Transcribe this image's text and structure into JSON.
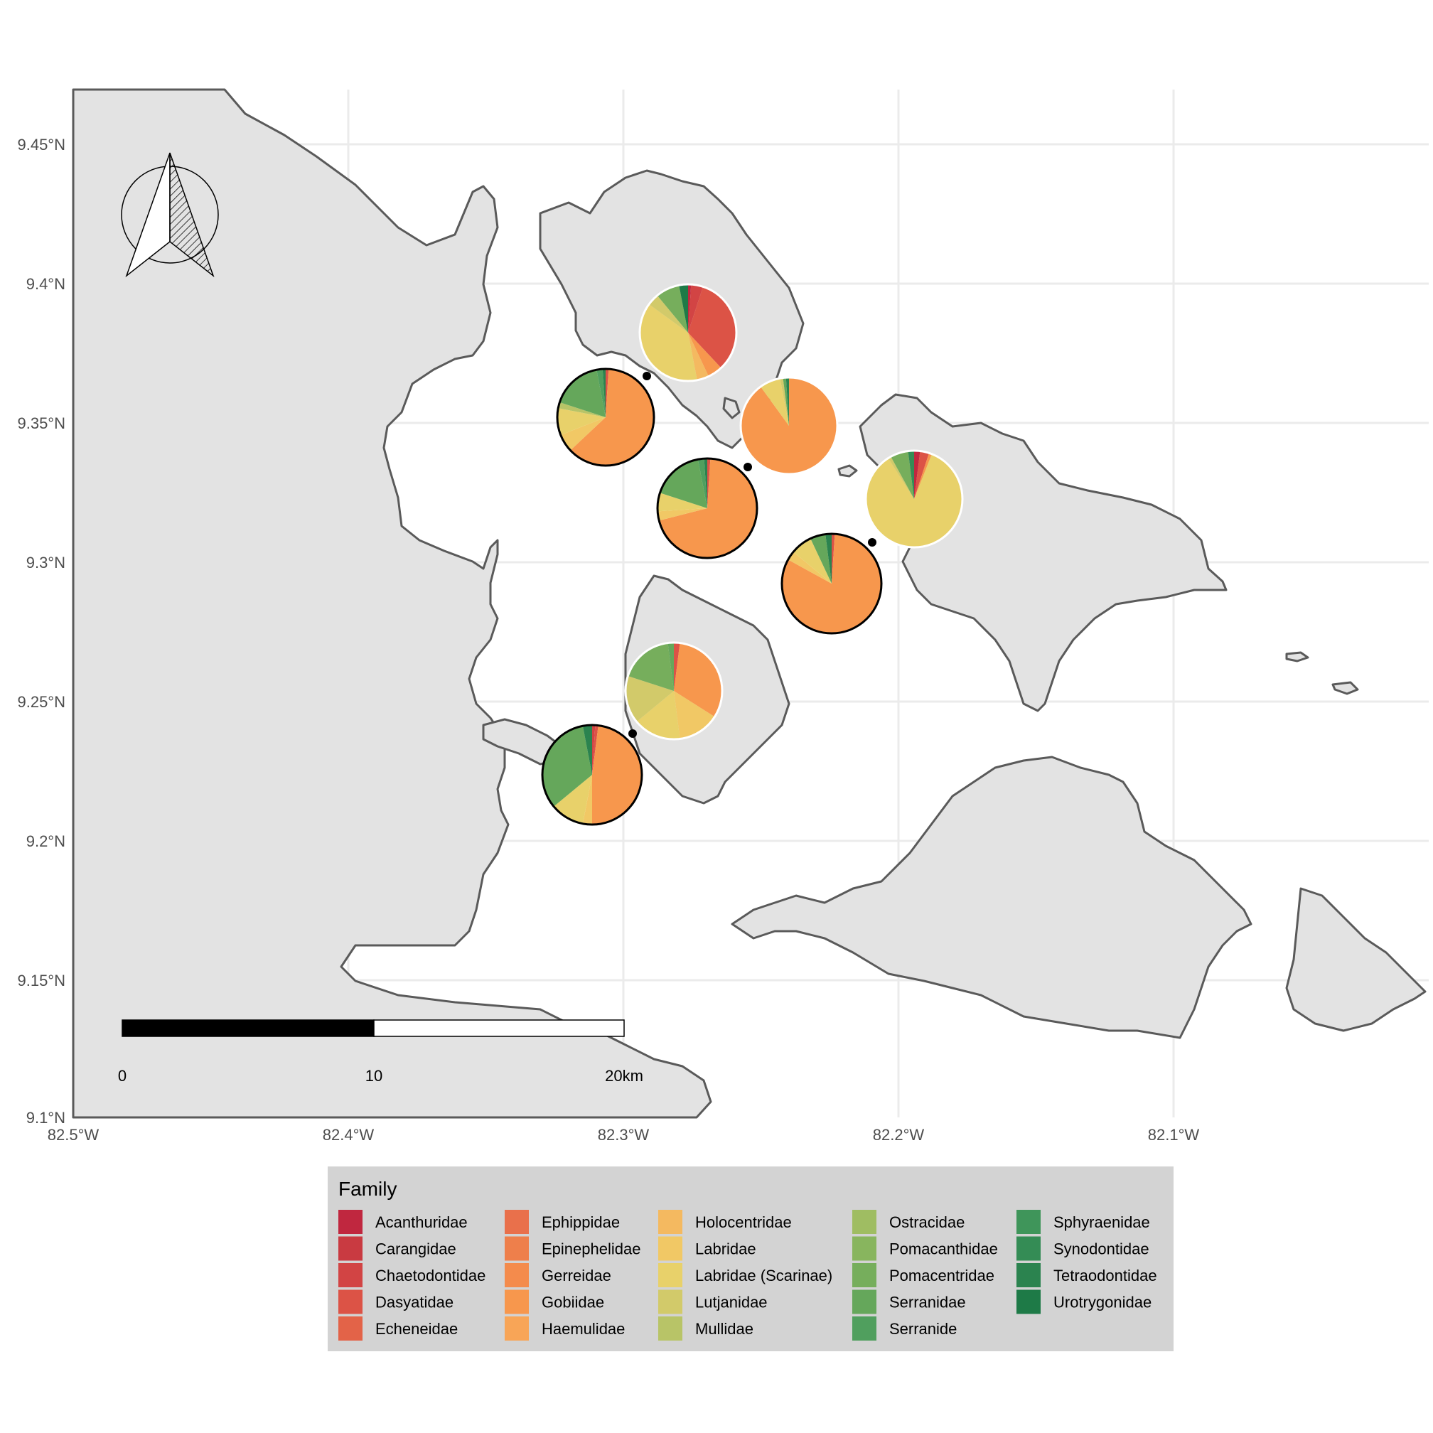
{
  "map": {
    "y_axis_labels": [
      "9.45°N",
      "9.4°N",
      "9.35°N",
      "9.3°N",
      "9.25°N",
      "9.2°N",
      "9.15°N",
      "9.1°N"
    ],
    "x_axis_labels": [
      "82.5°W",
      "82.4°W",
      "82.3°W",
      "82.2°W",
      "82.1°W"
    ],
    "scale_bar_labels": [
      "0",
      "10",
      "20km"
    ],
    "land_color": "#e3e3e3",
    "coast_color": "#5a5a5a",
    "compass_icon": "north-arrow-icon"
  },
  "legend": {
    "title": "Family",
    "entries": [
      {
        "name": "Acanthuridae",
        "color": "#c0273f"
      },
      {
        "name": "Carangidae",
        "color": "#c93a41"
      },
      {
        "name": "Chaetodontidae",
        "color": "#d24444"
      },
      {
        "name": "Dasyatidae",
        "color": "#dc5346"
      },
      {
        "name": "Echeneidae",
        "color": "#e36348"
      },
      {
        "name": "Ephippidae",
        "color": "#e9704b"
      },
      {
        "name": "Epinephelidae",
        "color": "#ee7f4b"
      },
      {
        "name": "Gerreidae",
        "color": "#f48b4c"
      },
      {
        "name": "Gobiidae",
        "color": "#f7974d"
      },
      {
        "name": "Haemulidae",
        "color": "#f8a557"
      },
      {
        "name": "Holocentridae",
        "color": "#f4b960"
      },
      {
        "name": "Labridae",
        "color": "#f1c865"
      },
      {
        "name": "Labridae (Scarinae)",
        "color": "#e8d16a"
      },
      {
        "name": "Lutjanidae",
        "color": "#d2ca6a"
      },
      {
        "name": "Mullidae",
        "color": "#b8c467"
      },
      {
        "name": "Ostracidae",
        "color": "#9fbd62"
      },
      {
        "name": "Pomacanthidae",
        "color": "#88b55e"
      },
      {
        "name": "Pomacentridae",
        "color": "#76ae5c"
      },
      {
        "name": "Serranidae",
        "color": "#65a75b"
      },
      {
        "name": "Serranide",
        "color": "#509f5e"
      },
      {
        "name": "Sphyraenidae",
        "color": "#3f955a"
      },
      {
        "name": "Synodontidae",
        "color": "#348c55"
      },
      {
        "name": "Tetraodontidae",
        "color": "#2b834f"
      },
      {
        "name": "Urotrygonidae",
        "color": "#1e7a47"
      }
    ]
  },
  "sites": [
    {
      "border": "#ffffff",
      "composition": [
        {
          "family": "Acanthuridae",
          "value": 0.01
        },
        {
          "family": "Chaetodontidae",
          "value": 0.04
        },
        {
          "family": "Dasyatidae",
          "value": 0.33
        },
        {
          "family": "Gobiidae",
          "value": 0.05
        },
        {
          "family": "Holocentridae",
          "value": 0.04
        },
        {
          "family": "Labridae (Scarinae)",
          "value": 0.38
        },
        {
          "family": "Lutjanidae",
          "value": 0.04
        },
        {
          "family": "Pomacentridae",
          "value": 0.08
        },
        {
          "family": "Urotrygonidae",
          "value": 0.03
        }
      ]
    },
    {
      "border": "#000000",
      "composition": [
        {
          "family": "Dasyatidae",
          "value": 0.01
        },
        {
          "family": "Gobiidae",
          "value": 0.62
        },
        {
          "family": "Labridae",
          "value": 0.06
        },
        {
          "family": "Labridae (Scarinae)",
          "value": 0.09
        },
        {
          "family": "Mullidae",
          "value": 0.02
        },
        {
          "family": "Serranidae",
          "value": 0.17
        },
        {
          "family": "Serranide",
          "value": 0.02
        },
        {
          "family": "Tetraodontidae",
          "value": 0.01
        }
      ]
    },
    {
      "border": "#ffffff",
      "composition": [
        {
          "family": "Gobiidae",
          "value": 0.9
        },
        {
          "family": "Labridae (Scarinae)",
          "value": 0.07
        },
        {
          "family": "Lutjanidae",
          "value": 0.01
        },
        {
          "family": "Serranidae",
          "value": 0.01
        },
        {
          "family": "Tetraodontidae",
          "value": 0.01
        }
      ]
    },
    {
      "border": "#000000",
      "composition": [
        {
          "family": "Dasyatidae",
          "value": 0.01
        },
        {
          "family": "Gobiidae",
          "value": 0.7
        },
        {
          "family": "Labridae",
          "value": 0.03
        },
        {
          "family": "Labridae (Scarinae)",
          "value": 0.06
        },
        {
          "family": "Serranidae",
          "value": 0.17
        },
        {
          "family": "Serranide",
          "value": 0.02
        },
        {
          "family": "Tetraodontidae",
          "value": 0.01
        }
      ]
    },
    {
      "border": "#ffffff",
      "composition": [
        {
          "family": "Acanthuridae",
          "value": 0.02
        },
        {
          "family": "Dasyatidae",
          "value": 0.03
        },
        {
          "family": "Gobiidae",
          "value": 0.01
        },
        {
          "family": "Labridae (Scarinae)",
          "value": 0.85
        },
        {
          "family": "Lutjanidae",
          "value": 0.01
        },
        {
          "family": "Pomacentridae",
          "value": 0.06
        },
        {
          "family": "Synodontidae",
          "value": 0.02
        }
      ]
    },
    {
      "border": "#000000",
      "composition": [
        {
          "family": "Dasyatidae",
          "value": 0.01
        },
        {
          "family": "Gobiidae",
          "value": 0.82
        },
        {
          "family": "Labridae",
          "value": 0.03
        },
        {
          "family": "Labridae (Scarinae)",
          "value": 0.07
        },
        {
          "family": "Serranidae",
          "value": 0.05
        },
        {
          "family": "Tetraodontidae",
          "value": 0.02
        }
      ]
    },
    {
      "border": "#ffffff",
      "composition": [
        {
          "family": "Dasyatidae",
          "value": 0.02
        },
        {
          "family": "Gobiidae",
          "value": 0.32
        },
        {
          "family": "Labridae",
          "value": 0.14
        },
        {
          "family": "Labridae (Scarinae)",
          "value": 0.16
        },
        {
          "family": "Lutjanidae",
          "value": 0.16
        },
        {
          "family": "Pomacentridae",
          "value": 0.18
        },
        {
          "family": "Serranidae",
          "value": 0.02
        }
      ]
    },
    {
      "border": "#000000",
      "composition": [
        {
          "family": "Chaetodontidae",
          "value": 0.01
        },
        {
          "family": "Dasyatidae",
          "value": 0.01
        },
        {
          "family": "Gobiidae",
          "value": 0.48
        },
        {
          "family": "Labridae",
          "value": 0.03
        },
        {
          "family": "Labridae (Scarinae)",
          "value": 0.11
        },
        {
          "family": "Serranidae",
          "value": 0.33
        },
        {
          "family": "Tetraodontidae",
          "value": 0.03
        }
      ]
    }
  ]
}
